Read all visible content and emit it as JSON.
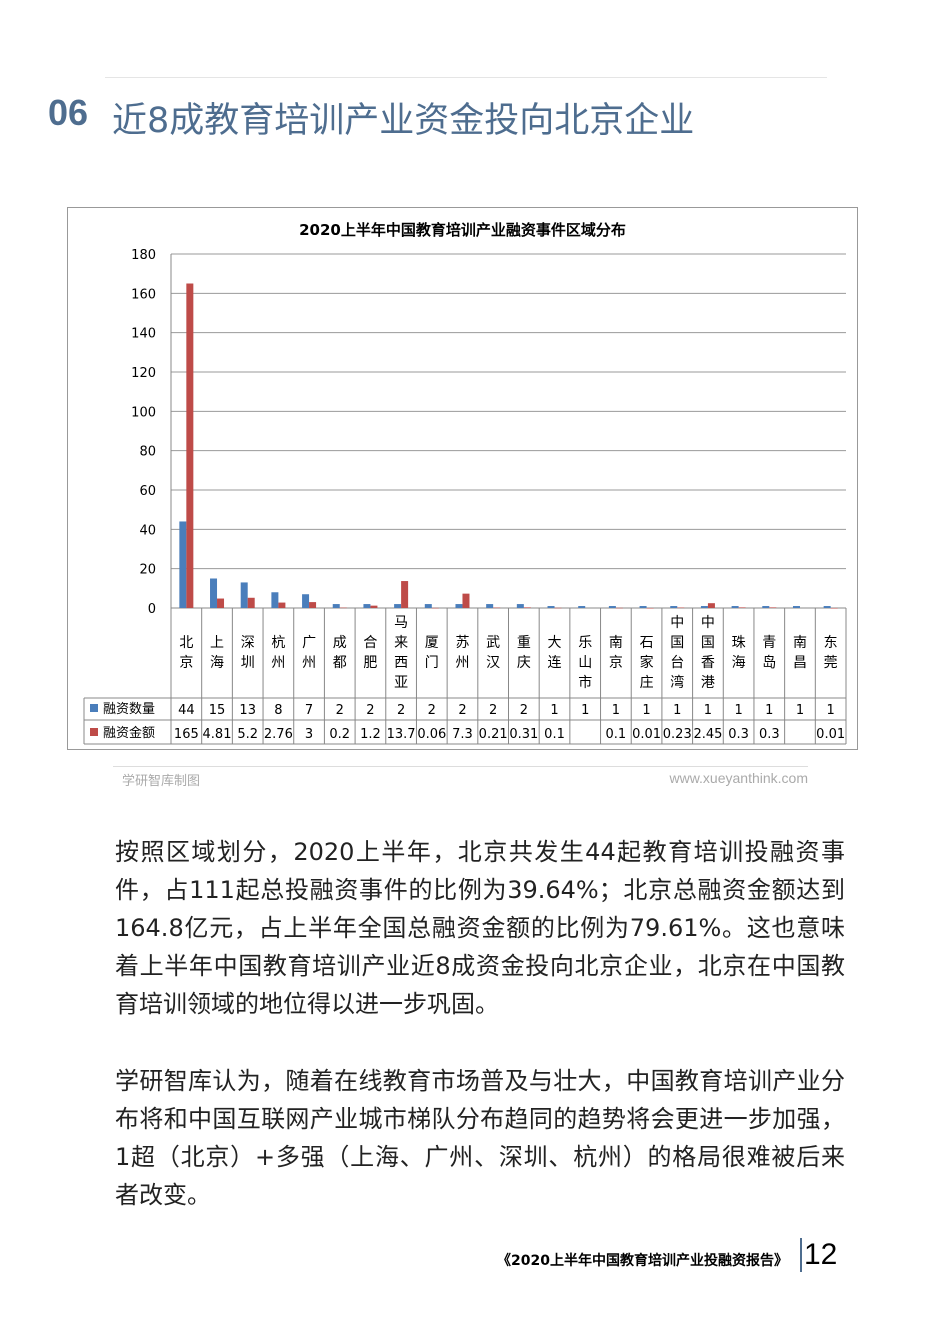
{
  "header": {
    "number": "06",
    "title": "近8成教育培训产业资金投向北京企业"
  },
  "watermark": "学研智库",
  "chart_data": {
    "type": "bar",
    "title": "2020上半年中国教育培训产业融资事件区域分布",
    "categories": [
      "北京",
      "上海",
      "深圳",
      "杭州",
      "广州",
      "成都",
      "合肥",
      "马来西亚",
      "厦门",
      "苏州",
      "武汉",
      "重庆",
      "大连",
      "乐山市",
      "南京",
      "石家庄",
      "中国台湾",
      "中国香港",
      "珠海",
      "青岛",
      "南昌",
      "东莞"
    ],
    "series": [
      {
        "name": "融资数量",
        "color": "#4a7ebb",
        "values": [
          44,
          15,
          13,
          8,
          7,
          2,
          2,
          2,
          2,
          2,
          2,
          2,
          1,
          1,
          1,
          1,
          1,
          1,
          1,
          1,
          1,
          1
        ],
        "labels": [
          "44",
          "15",
          "13",
          "8",
          "7",
          "2",
          "2",
          "2",
          "2",
          "2",
          "2",
          "2",
          "1",
          "1",
          "1",
          "1",
          "1",
          "1",
          "1",
          "1",
          "1",
          "1"
        ]
      },
      {
        "name": "融资金额",
        "color": "#be4b48",
        "values": [
          165,
          4.81,
          5.2,
          2.76,
          3,
          0.2,
          1.2,
          13.7,
          0.06,
          7.3,
          0.21,
          0.31,
          0.1,
          null,
          0.1,
          0.01,
          0.23,
          2.45,
          0.3,
          0.3,
          null,
          0.01
        ],
        "labels": [
          "165",
          "4.81",
          "5.2",
          "2.76",
          "3",
          "0.2",
          "1.2",
          "13.7",
          "0.06",
          "7.3",
          "0.21",
          "0.31",
          "0.1",
          "",
          "0.1",
          "0.01",
          "0.23",
          "2.45",
          "0.3",
          "0.3",
          "",
          "0.01"
        ]
      }
    ],
    "yticks": [
      0,
      20,
      40,
      60,
      80,
      100,
      120,
      140,
      160,
      180
    ],
    "ylim": [
      0,
      180
    ],
    "grid": true,
    "legend": "data-table"
  },
  "source": {
    "left": "学研智库制图",
    "right": "www.xueyanthink.com"
  },
  "paragraphs": [
    "按照区域划分，2020上半年，北京共发生44起教育培训投融资事件，占111起总投融资事件的比例为39.64%；北京总融资金额达到164.8亿元，占上半年全国总融资金额的比例为79.61%。这也意味着上半年中国教育培训产业近8成资金投向北京企业，北京在中国教育培训领域的地位得以进一步巩固。",
    "学研智库认为，随着在线教育市场普及与壮大，中国教育培训产业分布将和中国互联网产业城市梯队分布趋同的趋势将会更进一步加强，1超（北京）+多强（上海、广州、深圳、杭州）的格局很难被后来者改变。"
  ],
  "footer": {
    "report": "《2020上半年中国教育培训产业投融资报告》",
    "page": "12"
  }
}
